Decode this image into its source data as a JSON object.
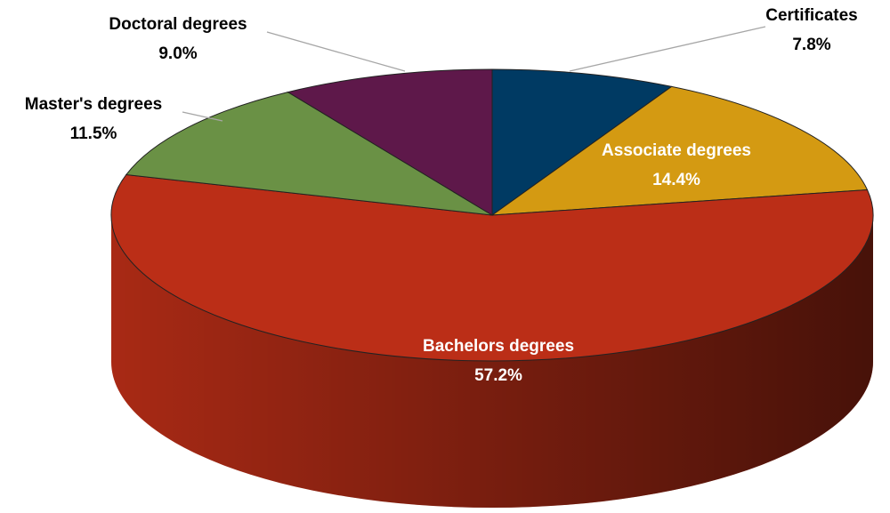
{
  "chart_data": {
    "type": "pie",
    "categories": [
      "Certificates",
      "Associate degrees",
      "Bachelors degrees",
      "Master's degrees",
      "Doctoral degrees"
    ],
    "values": [
      7.8,
      14.4,
      57.2,
      11.5,
      9.0
    ],
    "value_labels": [
      "7.8%",
      "14.4%",
      "57.2%",
      "11.5%",
      "9.0%"
    ],
    "colors": [
      "#003a63",
      "#d49a12",
      "#bb2e17",
      "#6a9145",
      "#5e184a"
    ]
  }
}
